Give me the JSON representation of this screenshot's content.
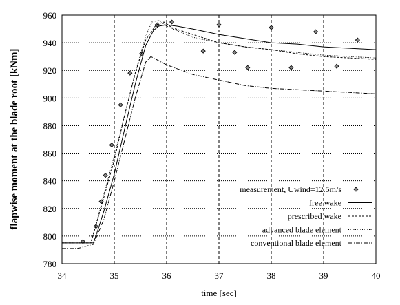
{
  "chart_data": {
    "type": "line",
    "title": "",
    "xlabel": "time [sec]",
    "ylabel": "flapwise moment at the blade root [kNm]",
    "xlim": [
      34,
      40
    ],
    "ylim": [
      780,
      960
    ],
    "xticks": [
      "34",
      "35",
      "36",
      "37",
      "38",
      "39",
      "40"
    ],
    "yticks": [
      "780",
      "800",
      "820",
      "840",
      "860",
      "880",
      "900",
      "920",
      "940",
      "960"
    ],
    "grid": true,
    "legend_position": "bottom-right",
    "series": [
      {
        "name": "measurement,  Uwind=12.5m/s",
        "style": "markers",
        "marker": "diamond",
        "x": [
          34.4,
          34.65,
          34.75,
          34.83,
          34.95,
          35.12,
          35.3,
          35.52,
          35.82,
          36.1,
          36.7,
          37.0,
          37.3,
          37.55,
          38.0,
          38.38,
          38.85,
          39.25,
          39.65
        ],
        "y": [
          796,
          807,
          825,
          844,
          866,
          895,
          918,
          932,
          953,
          955,
          934,
          953,
          933,
          922,
          951,
          922,
          948,
          923,
          942
        ]
      },
      {
        "name": "free wake",
        "style": "solid",
        "x": [
          34.0,
          34.6,
          34.7,
          34.8,
          35.0,
          35.2,
          35.4,
          35.6,
          35.75,
          35.85,
          36.0,
          36.2,
          36.5,
          37.0,
          37.5,
          38.0,
          38.5,
          39.0,
          39.5,
          40.0
        ],
        "y": [
          795,
          795,
          806,
          818,
          845,
          878,
          910,
          938,
          949,
          952,
          953,
          952,
          950,
          946,
          943,
          940,
          939,
          937,
          936,
          935
        ]
      },
      {
        "name": "prescribed wake",
        "style": "dashed",
        "x": [
          34.0,
          34.55,
          34.65,
          34.8,
          35.0,
          35.2,
          35.4,
          35.6,
          35.8,
          35.95,
          36.1,
          36.5,
          37.0,
          37.5,
          38.0,
          38.5,
          39.0,
          39.5,
          40.0
        ],
        "y": [
          795,
          795,
          808,
          828,
          855,
          888,
          918,
          942,
          953,
          955,
          951,
          946,
          940,
          937,
          935,
          932,
          930,
          929,
          928
        ]
      },
      {
        "name": "advanced blade element",
        "style": "dotted",
        "x": [
          34.0,
          34.55,
          34.65,
          34.8,
          35.0,
          35.2,
          35.4,
          35.6,
          35.72,
          35.85,
          36.0,
          36.5,
          37.0,
          37.5,
          38.0,
          38.5,
          39.0,
          39.5,
          40.0
        ],
        "y": [
          795,
          795,
          808,
          830,
          858,
          888,
          918,
          945,
          955,
          956,
          952,
          944,
          940,
          937,
          935,
          933,
          931,
          930,
          929
        ]
      },
      {
        "name": "conventional blade element",
        "style": "dashdot",
        "x": [
          34.0,
          34.3,
          34.6,
          34.8,
          35.0,
          35.2,
          35.4,
          35.6,
          35.7,
          36.0,
          36.5,
          37.0,
          37.5,
          38.0,
          38.5,
          39.0,
          39.5,
          40.0
        ],
        "y": [
          791,
          791,
          794,
          812,
          840,
          870,
          900,
          926,
          930,
          924,
          917,
          913,
          909,
          907,
          906,
          905,
          904,
          903
        ]
      }
    ]
  }
}
